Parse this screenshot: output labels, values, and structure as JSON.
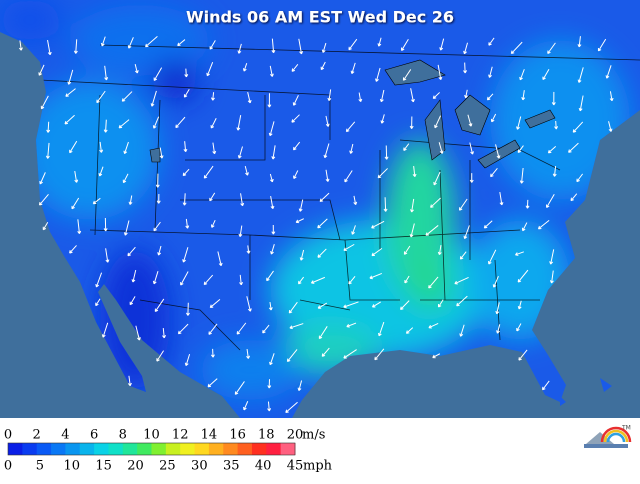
{
  "title": "Winds 06 AM EST Wed Dec 26",
  "legend": {
    "ms_labels": [
      0,
      2,
      4,
      6,
      8,
      10,
      12,
      14,
      16,
      18,
      20
    ],
    "ms_unit": "m/s",
    "mph_labels": [
      0,
      5,
      10,
      15,
      20,
      25,
      30,
      35,
      40,
      45
    ],
    "mph_unit": "mph",
    "colors": [
      "#0a1ee6",
      "#0a3cf0",
      "#0a5af5",
      "#0a78f5",
      "#0a96f0",
      "#0ab4ec",
      "#0ad2e6",
      "#10e0c8",
      "#20e69a",
      "#40ea60",
      "#80f030",
      "#c8f020",
      "#f0f020",
      "#ffd820",
      "#ffb020",
      "#ff8a20",
      "#ff6020",
      "#ff3020",
      "#ff2040",
      "#ff6080"
    ]
  },
  "logo": {
    "mark": "TM"
  }
}
